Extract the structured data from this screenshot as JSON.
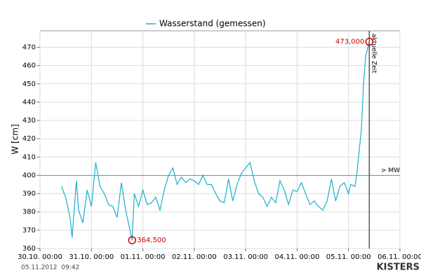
{
  "chart_data": {
    "type": "line",
    "y_label": "W [cm]",
    "series": [
      {
        "name": "Wasserstand (gemessen)",
        "color": "#1ab0cc",
        "x": [
          "30.10. 10:00",
          "30.10. 12:00",
          "30.10. 14:00",
          "30.10. 15:00",
          "30.10. 17:00",
          "30.10. 18:00",
          "30.10. 20:00",
          "30.10. 22:00",
          "31.10. 00:00",
          "31.10. 02:00",
          "31.10. 04:00",
          "31.10. 06:00",
          "31.10. 08:00",
          "31.10. 10:00",
          "31.10. 12:00",
          "31.10. 14:00",
          "31.10. 16:00",
          "31.10. 19:00",
          "31.10. 20:00",
          "31.10. 22:00",
          "01.11. 00:00",
          "01.11. 02:00",
          "01.11. 04:00",
          "01.11. 06:00",
          "01.11. 08:00",
          "01.11. 10:00",
          "01.11. 12:00",
          "01.11. 14:00",
          "01.11. 16:00",
          "01.11. 18:00",
          "01.11. 20:00",
          "01.11. 22:00",
          "02.11. 00:00",
          "02.11. 02:00",
          "02.11. 04:00",
          "02.11. 06:00",
          "02.11. 08:00",
          "02.11. 10:00",
          "02.11. 12:00",
          "02.11. 14:00",
          "02.11. 16:00",
          "02.11. 18:00",
          "02.11. 20:00",
          "02.11. 22:00",
          "03.11. 00:00",
          "03.11. 02:00",
          "03.11. 04:00",
          "03.11. 06:00",
          "03.11. 08:00",
          "03.11. 10:00",
          "03.11. 12:00",
          "03.11. 14:00",
          "03.11. 16:00",
          "03.11. 18:00",
          "03.11. 20:00",
          "03.11. 22:00",
          "04.11. 00:00",
          "04.11. 02:00",
          "04.11. 04:00",
          "04.11. 06:00",
          "04.11. 08:00",
          "04.11. 10:00",
          "04.11. 12:00",
          "04.11. 14:00",
          "04.11. 16:00",
          "04.11. 18:00",
          "04.11. 20:00",
          "04.11. 22:00",
          "05.11. 00:00",
          "05.11. 01:00",
          "05.11. 03:00",
          "05.11. 04:00",
          "05.11. 06:00",
          "05.11. 07:00",
          "05.11. 08:00",
          "05.11. 09:42"
        ],
        "values": [
          394,
          388,
          377,
          366,
          397,
          381,
          374,
          392,
          383,
          407,
          394,
          390,
          384,
          383,
          377,
          396,
          381,
          364.5,
          390,
          383,
          392,
          384,
          385,
          388,
          381,
          392,
          400,
          404,
          395,
          399,
          396,
          398,
          397,
          395,
          400,
          395,
          395,
          390,
          386,
          385,
          398,
          386,
          395,
          401,
          404,
          407,
          397,
          390,
          388,
          383,
          388,
          385,
          397,
          392,
          384,
          392,
          391,
          396,
          390,
          384,
          386,
          383,
          381,
          386,
          398,
          386,
          394,
          396,
          390,
          395,
          394,
          402,
          425,
          450,
          465,
          473
        ]
      }
    ],
    "xlim": [
      "30.10. 00:00",
      "06.11. 00:00"
    ],
    "xticks": [
      "30.10. 00:00",
      "31.10. 00:00",
      "01.11. 00:00",
      "02.11. 00:00",
      "03.11. 00:00",
      "04.11. 00:00",
      "05.11. 00:00",
      "06.11. 00:00"
    ],
    "ylim": [
      360,
      479
    ],
    "yticks": [
      360,
      370,
      380,
      390,
      400,
      410,
      420,
      430,
      440,
      450,
      460,
      470
    ],
    "grid": true,
    "annotations": [
      {
        "x": "31.10. 19:00",
        "value": 364.5,
        "label": "364,500",
        "color": "#cc0000"
      },
      {
        "x": "05.11. 09:42",
        "value": 473,
        "label": "473,000",
        "color": "#cc0000"
      }
    ],
    "reference_line": {
      "value": 400,
      "label": "> MW",
      "color": "#1ab0cc"
    },
    "current_time": {
      "x": "05.11. 09:42",
      "label": "aktuelle Zeit"
    },
    "footer": "05.11.2012  09:42",
    "logo": "KISTERS"
  }
}
